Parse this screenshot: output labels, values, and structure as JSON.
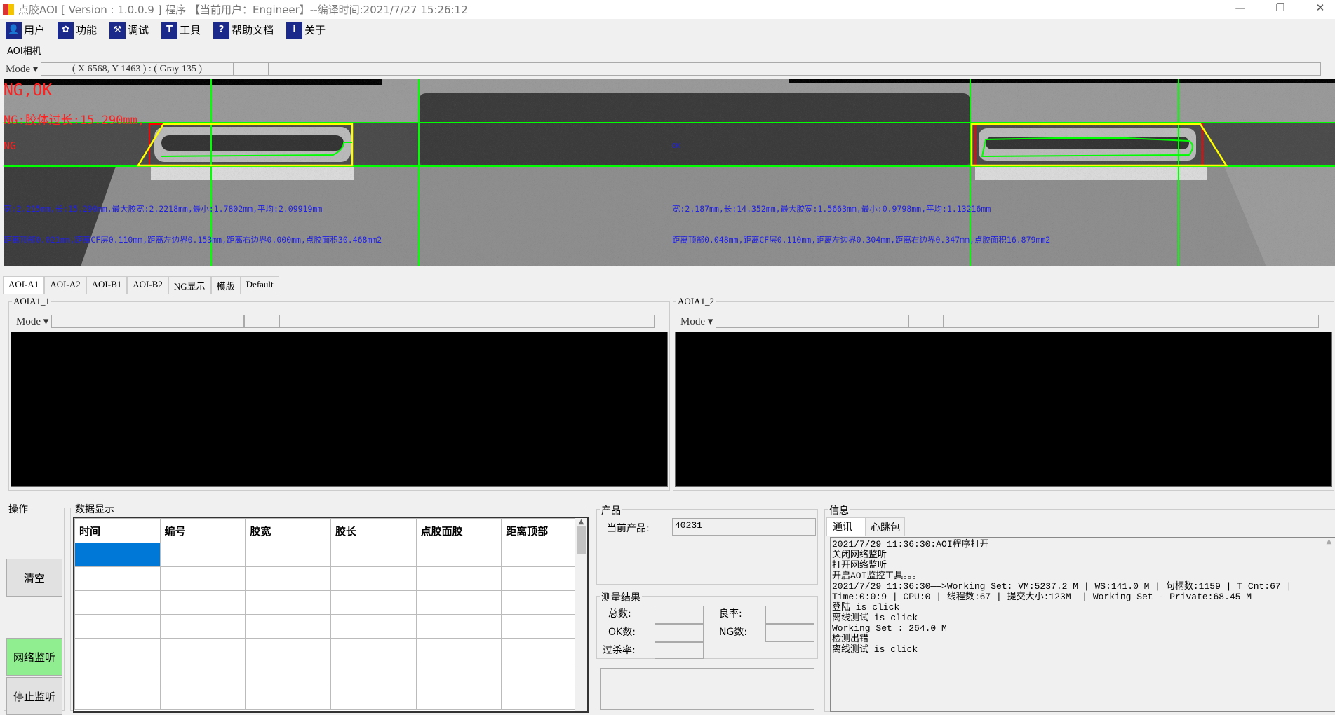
{
  "window": {
    "title": "点胶AOI [ Version : 1.0.0.9 ]  程序 【当前用户：Engineer】--编译时间:2021/7/27 15:26:12",
    "minimize": "—",
    "restore": "❐",
    "close": "✕"
  },
  "toolbar": [
    {
      "label": "用户",
      "icon": "user-icon"
    },
    {
      "label": "功能",
      "icon": "gear-icon"
    },
    {
      "label": "调试",
      "icon": "debug-icon"
    },
    {
      "label": "工具",
      "icon": "hammer-icon"
    },
    {
      "label": "帮助文档",
      "icon": "help-icon"
    },
    {
      "label": "关于",
      "icon": "info-icon"
    }
  ],
  "camera": {
    "label": "AOI相机",
    "mode": "Mode ▾",
    "coord": "( X 6568, Y 1463 ) : ( Gray 135 )"
  },
  "overlay": {
    "result": "NG,OK",
    "ng_reason": "NG:胶体过长:15.290mm,",
    "left_status": "NG",
    "right_status": "OK",
    "left_line1": "宽:2.215mm,长:15.290mm,最大胶宽:2.2218mm,最小:1.7802mm,平均:2.09919mm",
    "left_line2": "距离顶部0.021mm,距离CF层0.110mm,距离左边界0.153mm,距离右边界0.000mm,点胶面积30.468mm2",
    "right_line1": "宽:2.187mm,长:14.352mm,最大胶宽:1.5663mm,最小:0.9798mm,平均:1.13216mm",
    "right_line2": "距离顶部0.048mm,距离CF层0.110mm,距离左边界0.304mm,距离右边界0.347mm,点胶面积16.879mm2",
    "colors": {
      "ng": "#ff2020",
      "info": "#2020e0",
      "guide": "#00ff00",
      "roi": "#ffff00",
      "defect": "#ff0000"
    }
  },
  "tabs": [
    "AOI-A1",
    "AOI-A2",
    "AOI-B1",
    "AOI-B2",
    "NG显示",
    "模版",
    "Default"
  ],
  "active_tab": "AOI-A1",
  "views": [
    {
      "label": "AOIA1_1",
      "mode": "Mode ▾"
    },
    {
      "label": "AOIA1_2",
      "mode": "Mode ▾"
    }
  ],
  "operations": {
    "label": "操作",
    "clear": "清空",
    "listen": "网络监听",
    "stop": "停止监听",
    "listen_color": "#90ee90"
  },
  "data_display": {
    "label": "数据显示",
    "columns": [
      "时间",
      "编号",
      "胶宽",
      "胶长",
      "点胶面胶",
      "距离顶部"
    ],
    "selected_color": "#0078d7"
  },
  "product": {
    "label": "产品",
    "current_label": "当前产品:",
    "current_value": "40231"
  },
  "measure": {
    "label": "测量结果",
    "total": "总数:",
    "yield": "良率:",
    "ok": "OK数:",
    "ng": "NG数:",
    "overkill": "过杀率:"
  },
  "info": {
    "label": "信息",
    "tabs": [
      "通讯",
      "心跳包"
    ],
    "log": [
      "2021/7/29 11:36:30:AOI程序打开",
      "关闭网络监听",
      "打开网络监听",
      "开启AOI监控工具。。。",
      "2021/7/29 11:36:30——>Working Set: VM:5237.2 M | WS:141.0 M | 句柄数:1159 | T Cnt:67 |",
      "Time:0:0:9 | CPU:0 | 线程数:67 | 提交大小:123M  | Working Set - Private:68.45 M",
      "登陆 is click",
      "离线测试 is click",
      "Working Set : 264.0 M",
      "检测出错",
      "离线测试 is click"
    ]
  }
}
